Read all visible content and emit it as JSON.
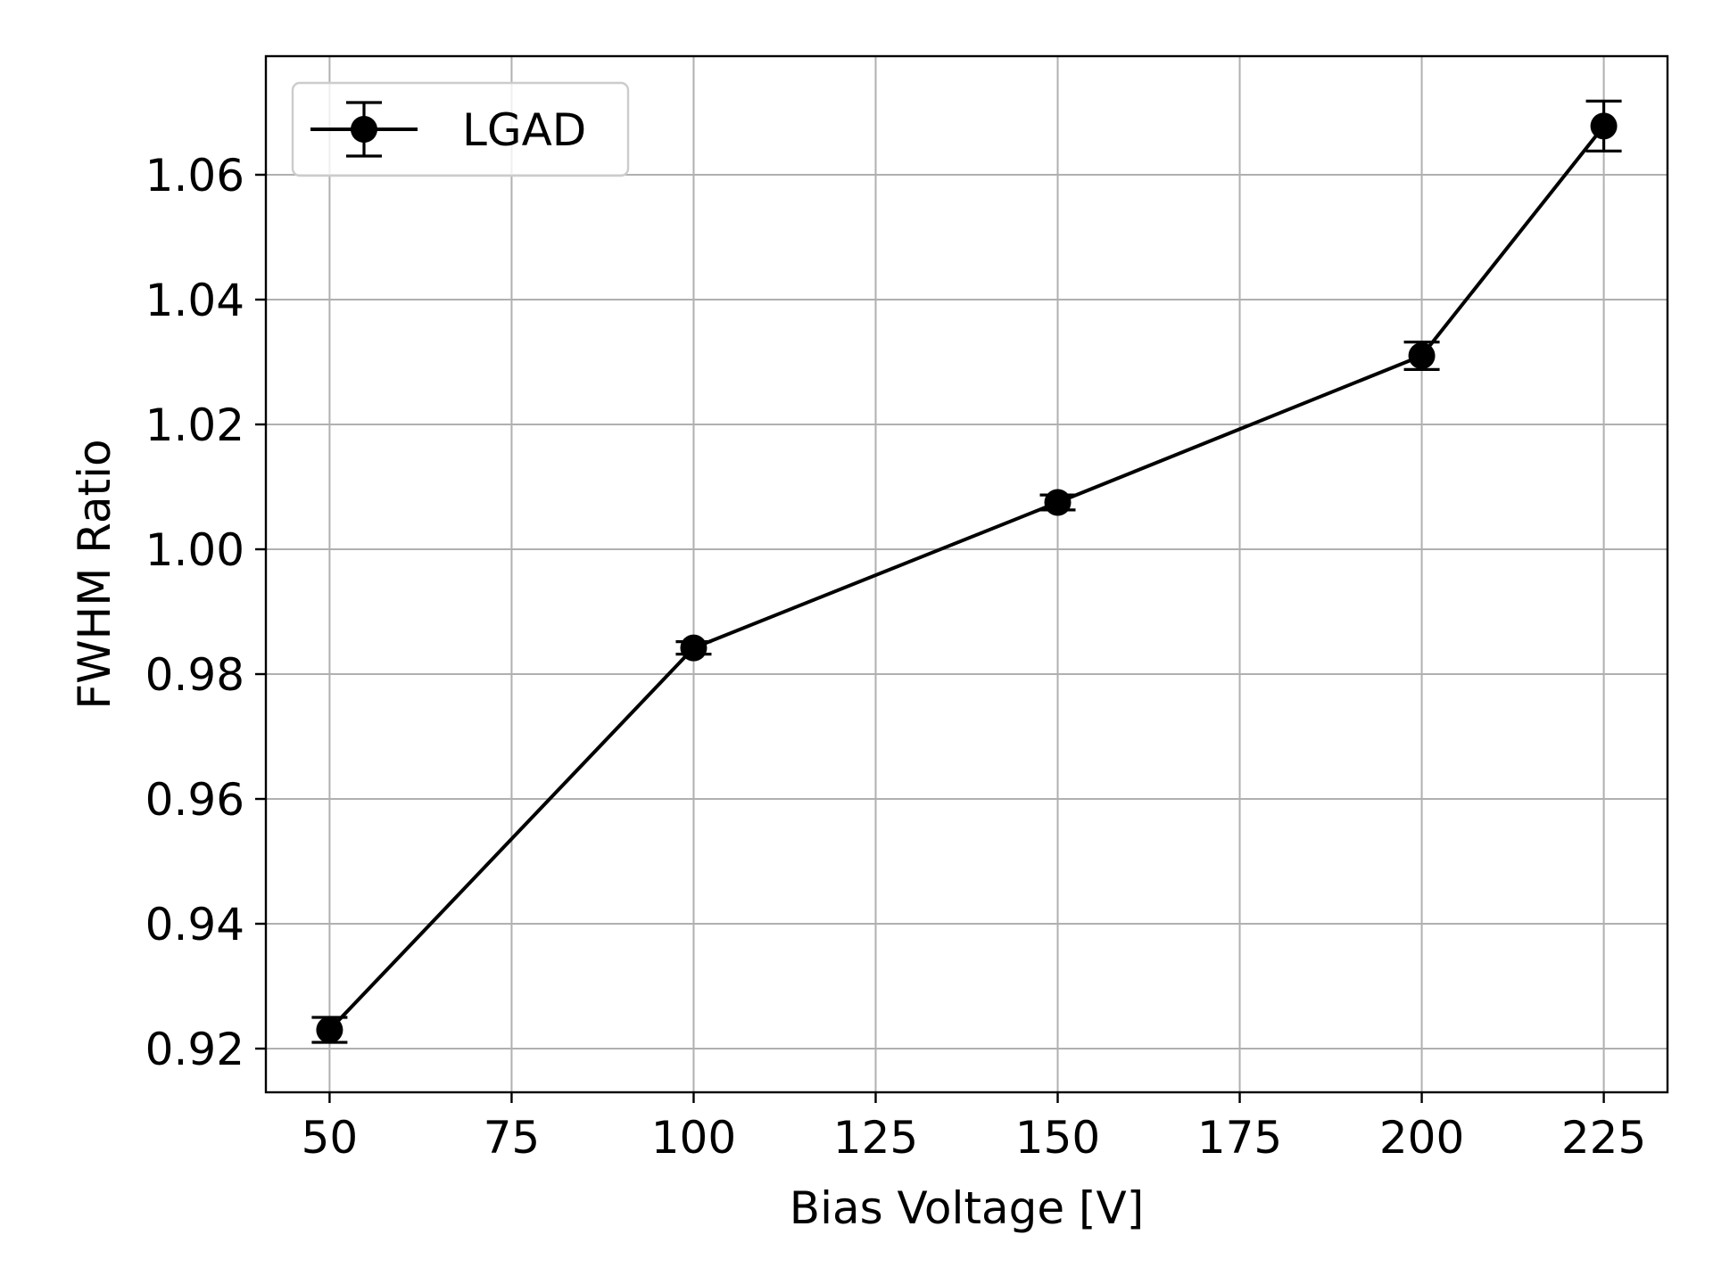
{
  "chart_data": {
    "type": "line",
    "title": "",
    "xlabel": "Bias Voltage [V]",
    "ylabel": "FWHM Ratio",
    "xlim": [
      41.25,
      233.75
    ],
    "ylim": [
      0.913,
      1.079
    ],
    "xticks": [
      50,
      75,
      100,
      125,
      150,
      175,
      200,
      225
    ],
    "xtick_labels": [
      "50",
      "75",
      "100",
      "125",
      "150",
      "175",
      "200",
      "225"
    ],
    "yticks": [
      0.92,
      0.94,
      0.96,
      0.98,
      1.0,
      1.02,
      1.04,
      1.06
    ],
    "ytick_labels": [
      "0.92",
      "0.94",
      "0.96",
      "0.98",
      "1.00",
      "1.02",
      "1.04",
      "1.06"
    ],
    "grid": true,
    "legend_position": "top-left",
    "series": [
      {
        "name": "LGAD",
        "color": "#000000",
        "marker": "circle",
        "x": [
          50,
          100,
          150,
          200,
          225
        ],
        "y": [
          0.923,
          0.9842,
          1.0075,
          1.031,
          1.0678
        ],
        "yerr": [
          0.002,
          0.001,
          0.0012,
          0.0022,
          0.004
        ]
      }
    ]
  }
}
